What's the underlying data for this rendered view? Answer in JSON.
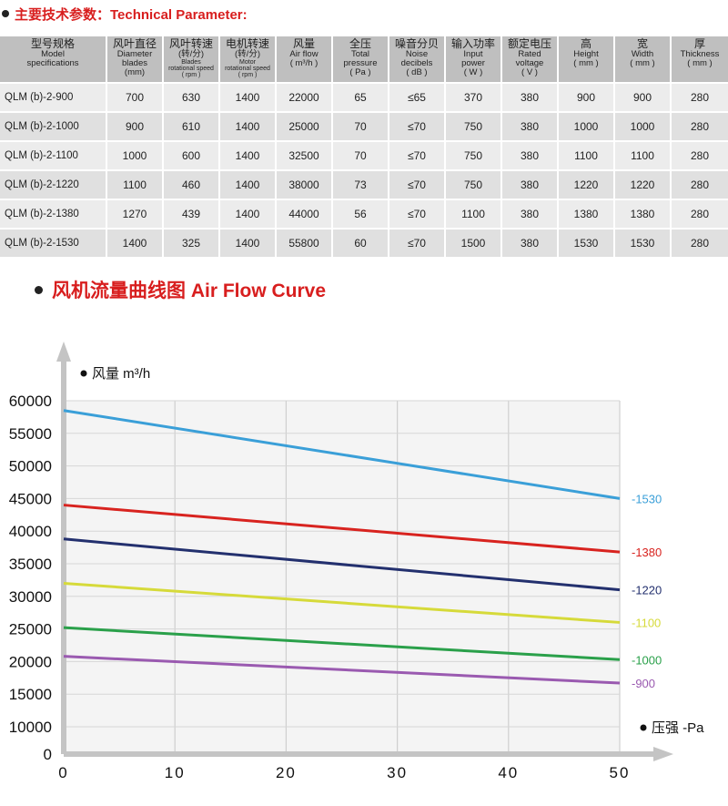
{
  "param_heading": "主要技术参数：Technical Parameter:",
  "spec_table": {
    "headers": [
      {
        "zh": "型号规格",
        "en": [
          "Model",
          "specifications"
        ],
        "en_small": false
      },
      {
        "zh": "风叶直径",
        "en": [
          "Diameter",
          "blades",
          "(mm)"
        ],
        "en_small": false
      },
      {
        "zh": "风叶转速",
        "en": [
          "(转/分)",
          "Blades",
          "rotational speed",
          "( rpm )"
        ],
        "en_small": true
      },
      {
        "zh": "电机转速",
        "en": [
          "(转/分)",
          "Motor",
          "rotational speed",
          "( rpm )"
        ],
        "en_small": true
      },
      {
        "zh": "风量",
        "en": [
          "Air flow",
          "( m³/h )"
        ],
        "en_small": false
      },
      {
        "zh": "全压",
        "en": [
          "Total",
          "pressure",
          "( Pa )"
        ],
        "en_small": false
      },
      {
        "zh": "噪音分贝",
        "en": [
          "Noise",
          "decibels",
          "( dB )"
        ],
        "en_small": false
      },
      {
        "zh": "输入功率",
        "en": [
          "Input",
          "power",
          "( W )"
        ],
        "en_small": false
      },
      {
        "zh": "额定电压",
        "en": [
          "Rated",
          "voltage",
          "( V )"
        ],
        "en_small": false
      },
      {
        "zh": "高",
        "en": [
          "Height",
          "( mm )"
        ],
        "en_small": false
      },
      {
        "zh": "宽",
        "en": [
          "Width",
          "( mm )"
        ],
        "en_small": false
      },
      {
        "zh": "厚",
        "en": [
          "Thickness",
          "( mm )"
        ],
        "en_small": false
      }
    ],
    "rows": [
      [
        "QLM (b)-2-900",
        "700",
        "630",
        "1400",
        "22000",
        "65",
        "≤65",
        "370",
        "380",
        "900",
        "900",
        "280"
      ],
      [
        "QLM (b)-2-1000",
        "900",
        "610",
        "1400",
        "25000",
        "70",
        "≤70",
        "750",
        "380",
        "1000",
        "1000",
        "280"
      ],
      [
        "QLM (b)-2-1100",
        "1000",
        "600",
        "1400",
        "32500",
        "70",
        "≤70",
        "750",
        "380",
        "1100",
        "1100",
        "280"
      ],
      [
        "QLM (b)-2-1220",
        "1100",
        "460",
        "1400",
        "38000",
        "73",
        "≤70",
        "750",
        "380",
        "1220",
        "1220",
        "280"
      ],
      [
        "QLM (b)-2-1380",
        "1270",
        "439",
        "1400",
        "44000",
        "56",
        "≤70",
        "1100",
        "380",
        "1380",
        "1380",
        "280"
      ],
      [
        "QLM (b)-2-1530",
        "1400",
        "325",
        "1400",
        "55800",
        "60",
        "≤70",
        "1500",
        "380",
        "1530",
        "1530",
        "280"
      ]
    ]
  },
  "curve_heading": "风机流量曲线图  Air Flow Curve",
  "chart_data": {
    "type": "line",
    "title": "风机流量曲线图  Air Flow Curve",
    "ylabel": "风量 m³/h",
    "xlabel": "压强  -Pa",
    "x": [
      0,
      50
    ],
    "xticks": [
      0,
      10,
      20,
      30,
      40,
      50
    ],
    "yticks": [
      0,
      10000,
      15000,
      20000,
      25000,
      30000,
      35000,
      40000,
      45000,
      50000,
      55000,
      60000
    ],
    "xlim": [
      0,
      50
    ],
    "grid": true,
    "series": [
      {
        "name": "-1530",
        "color": "#3a9fd8",
        "values": [
          58500,
          45000
        ]
      },
      {
        "name": "-1380",
        "color": "#d8231f",
        "values": [
          44000,
          36800
        ]
      },
      {
        "name": "-1220",
        "color": "#23306e",
        "values": [
          38800,
          31000
        ]
      },
      {
        "name": "-1100",
        "color": "#d6da3a",
        "values": [
          32000,
          26000
        ]
      },
      {
        "name": "-1000",
        "color": "#2aa04a",
        "values": [
          25200,
          20300
        ]
      },
      {
        "name": "-900",
        "color": "#9a5ab0",
        "values": [
          20800,
          16700
        ]
      }
    ]
  }
}
